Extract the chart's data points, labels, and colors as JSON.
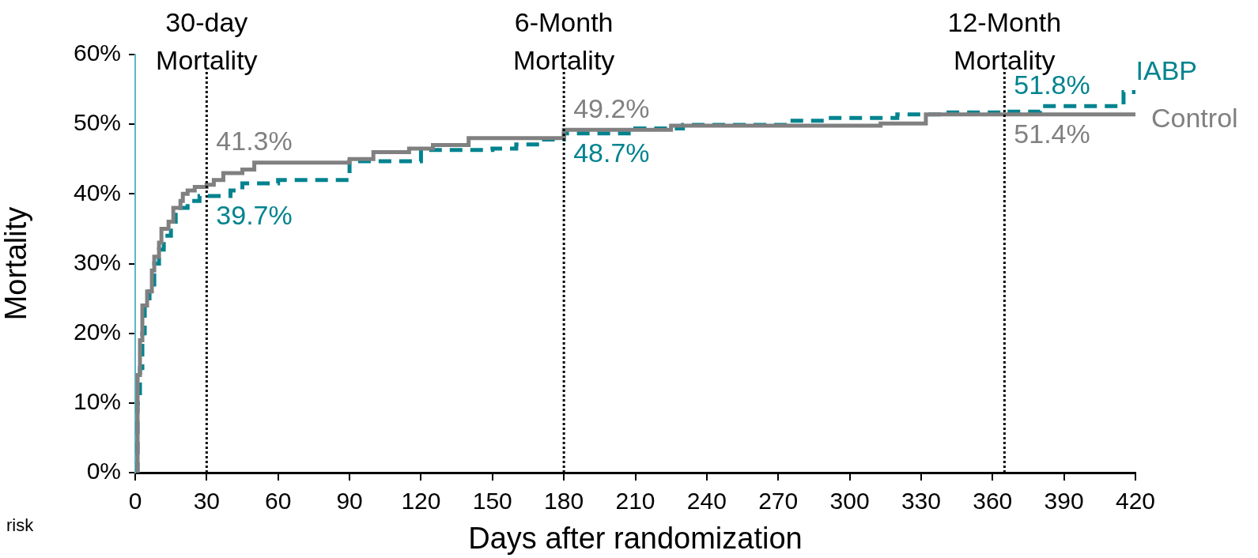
{
  "chart_data": {
    "type": "step",
    "xlabel": "Days after randomization",
    "ylabel": "Mortality",
    "xlim": [
      0,
      420
    ],
    "xticks": [
      0,
      30,
      60,
      90,
      120,
      150,
      180,
      210,
      240,
      270,
      300,
      330,
      360,
      390,
      420
    ],
    "ylim": [
      0,
      60
    ],
    "yticks": [
      {
        "value": 0,
        "label": "0%"
      },
      {
        "value": 10,
        "label": "10%"
      },
      {
        "value": 20,
        "label": "20%"
      },
      {
        "value": 30,
        "label": "30%"
      },
      {
        "value": 40,
        "label": "40%"
      },
      {
        "value": 50,
        "label": "50%"
      },
      {
        "value": 60,
        "label": "60%"
      }
    ],
    "grid": false,
    "legend": false,
    "marker": "none",
    "series": [
      {
        "name": "Control",
        "color": "#808080",
        "line_style": "solid",
        "x": [
          0,
          1,
          2,
          3,
          5,
          7,
          8,
          10,
          11,
          14,
          16,
          19,
          20,
          22,
          25,
          30,
          33,
          37,
          45,
          50,
          70,
          90,
          100,
          115,
          125,
          140,
          180,
          210,
          213,
          218,
          225,
          310,
          313,
          330,
          332,
          365,
          420
        ],
        "values": [
          0,
          14,
          19,
          24,
          26,
          29,
          31,
          33,
          35,
          36,
          38,
          39,
          40,
          40.5,
          41,
          41.3,
          42,
          43,
          43.5,
          44.5,
          44.5,
          45,
          46,
          46.5,
          47,
          48,
          49.2,
          49.2,
          49.2,
          49.2,
          49.8,
          49.8,
          50.1,
          50.1,
          51.4,
          51.4,
          51.4
        ],
        "value_labels": [
          null,
          null,
          null,
          null,
          null,
          null,
          null,
          null,
          null,
          null,
          null,
          null,
          null,
          null,
          null,
          "41.3%",
          null,
          null,
          null,
          null,
          null,
          null,
          null,
          null,
          null,
          null,
          "49.2%",
          null,
          null,
          null,
          null,
          null,
          null,
          null,
          null,
          "51.4%",
          null
        ]
      },
      {
        "name": "IABP",
        "color": "#00838f",
        "line_style": "dashed",
        "x": [
          0,
          1,
          2,
          3,
          4,
          6,
          8,
          10,
          12,
          15,
          17,
          22,
          27,
          30,
          40,
          45,
          60,
          90,
          120,
          150,
          160,
          170,
          180,
          210,
          230,
          275,
          290,
          320,
          340,
          365,
          380,
          415,
          420
        ],
        "values": [
          0,
          10,
          15,
          20,
          25,
          27,
          30,
          32,
          34,
          36,
          38,
          39,
          39.7,
          39.7,
          40.5,
          41.5,
          42,
          44.7,
          46.3,
          46.5,
          47.1,
          47.8,
          48.7,
          49.4,
          49.9,
          50.5,
          50.9,
          51.4,
          51.7,
          51.8,
          52.6,
          54.6,
          54.6
        ],
        "value_labels": [
          null,
          null,
          null,
          null,
          null,
          null,
          null,
          null,
          null,
          null,
          null,
          null,
          null,
          "39.7%",
          null,
          null,
          null,
          null,
          null,
          null,
          null,
          null,
          "48.7%",
          null,
          null,
          null,
          null,
          null,
          null,
          "51.8%",
          null,
          null,
          null
        ]
      }
    ],
    "ref_lines": [
      {
        "axis": "x",
        "value": 30,
        "label": "30-day Mortality",
        "color": "#000000",
        "line_style": "dotted"
      },
      {
        "axis": "x",
        "value": 180,
        "label": "6-Month Mortality",
        "color": "#000000",
        "line_style": "dotted"
      },
      {
        "axis": "x",
        "value": 365,
        "label": "12-Month Mortality",
        "color": "#000000",
        "line_style": "dotted"
      }
    ],
    "annotations": [
      "risk"
    ]
  }
}
